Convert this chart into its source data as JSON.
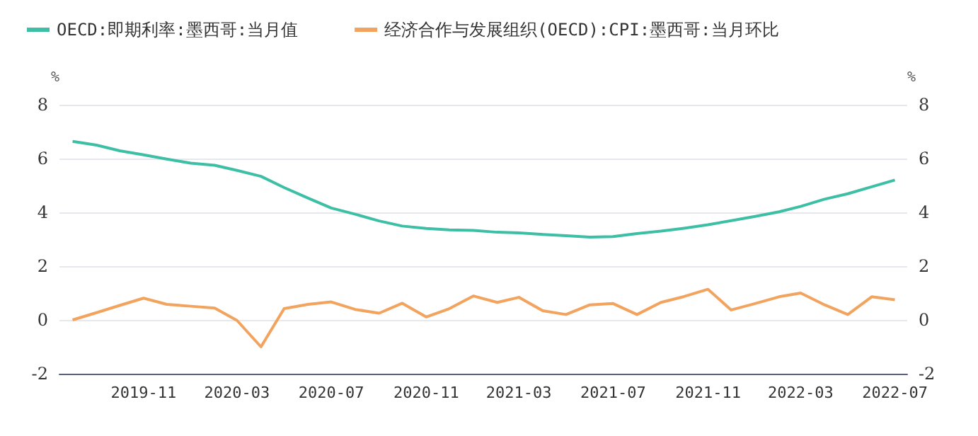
{
  "chart_data": {
    "type": "line",
    "x": [
      "2019-08",
      "2019-09",
      "2019-10",
      "2019-11",
      "2019-12",
      "2020-01",
      "2020-02",
      "2020-03",
      "2020-04",
      "2020-05",
      "2020-06",
      "2020-07",
      "2020-08",
      "2020-09",
      "2020-10",
      "2020-11",
      "2020-12",
      "2021-01",
      "2021-02",
      "2021-03",
      "2021-04",
      "2021-05",
      "2021-06",
      "2021-07",
      "2021-08",
      "2021-09",
      "2021-10",
      "2021-11",
      "2021-12",
      "2022-01",
      "2022-02",
      "2022-03",
      "2022-04",
      "2022-05",
      "2022-06",
      "2022-07"
    ],
    "series": [
      {
        "name": "OECD:即期利率:墨西哥:当月值",
        "color": "#3dbfa5",
        "values": [
          6.64,
          6.5,
          6.29,
          6.14,
          5.98,
          5.83,
          5.75,
          5.56,
          5.34,
          4.92,
          4.53,
          4.16,
          3.93,
          3.68,
          3.49,
          3.4,
          3.35,
          3.33,
          3.26,
          3.24,
          3.18,
          3.13,
          3.08,
          3.1,
          3.21,
          3.3,
          3.41,
          3.54,
          3.69,
          3.85,
          4.02,
          4.22,
          4.49,
          4.69,
          4.95,
          5.2
        ]
      },
      {
        "name": "经济合作与发展组织(OECD):CPI:墨西哥:当月环比",
        "color": "#f2a35e",
        "values": [
          0,
          0.27,
          0.54,
          0.81,
          0.58,
          0.51,
          0.44,
          -0.02,
          -1.0,
          0.42,
          0.58,
          0.67,
          0.39,
          0.25,
          0.62,
          0.11,
          0.42,
          0.89,
          0.65,
          0.84,
          0.34,
          0.2,
          0.56,
          0.61,
          0.2,
          0.65,
          0.87,
          1.14,
          0.37,
          0.61,
          0.86,
          1.0,
          0.56,
          0.2,
          0.86,
          0.75
        ]
      }
    ],
    "xlim": [
      "2019-07-15",
      "2022-07-17"
    ],
    "xticks": [
      "2019-11",
      "2020-03",
      "2020-07",
      "2020-11",
      "2021-03",
      "2021-07",
      "2021-11",
      "2022-03",
      "2022-07"
    ],
    "ylabel": "%",
    "y2label": "%",
    "ylim": [
      -2,
      8
    ],
    "yticks": [
      -2,
      0,
      2,
      4,
      6,
      8
    ],
    "y2lim": [
      -2,
      8
    ],
    "y2ticks": [
      -2,
      0,
      2,
      4,
      6,
      8
    ],
    "grid": "y",
    "legend": "top left",
    "marker": "none",
    "line_style": "solid"
  }
}
